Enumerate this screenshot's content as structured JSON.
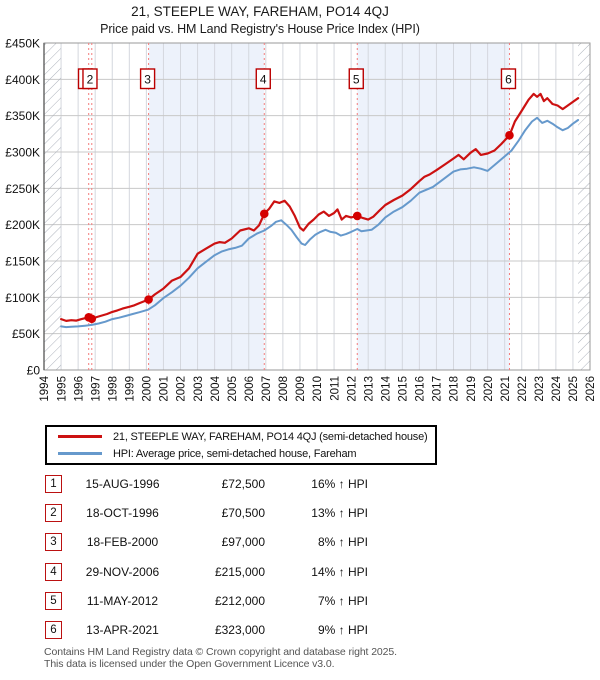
{
  "title": "21, STEEPLE WAY, FAREHAM, PO14 4QJ",
  "subtitle": "Price paid vs. HM Land Registry's House Price Index (HPI)",
  "footer": {
    "line1": "Contains HM Land Registry data © Crown copyright and database right 2025.",
    "line2": "This data is licensed under the Open Government Licence v3.0."
  },
  "colors": {
    "property_red": "#cc1111",
    "hpi_blue": "#6699cc",
    "shaded_band": "#edf2fb",
    "sale_dashed_line": "#f47c7c",
    "grid_horizontal": "#c8c8c8",
    "grid_vertical": "#d4d7de",
    "frame": "#9a9a9a",
    "hatch": "#adb2bc"
  },
  "transactions": [
    {
      "n": 1,
      "date": "15-AUG-1996",
      "year": 1996.62,
      "price_k": 72.5,
      "price": "£72,500",
      "hpi": "16% ↑ HPI",
      "box_dx": -3.2
    },
    {
      "n": 2,
      "date": "18-OCT-1996",
      "year": 1996.8,
      "price_k": 70.5,
      "price": "£70,500",
      "hpi": "13% ↑ HPI",
      "box_dx": -1.8
    },
    {
      "n": 3,
      "date": "18-FEB-2000",
      "year": 2000.13,
      "price_k": 97,
      "price": "£97,000",
      "hpi": "8% ↑ HPI",
      "box_dx": -1
    },
    {
      "n": 4,
      "date": "29-NOV-2006",
      "year": 2006.91,
      "price_k": 215,
      "price": "£215,000",
      "hpi": "14% ↑ HPI",
      "box_dx": -1
    },
    {
      "n": 5,
      "date": "11-MAY-2012",
      "year": 2012.36,
      "price_k": 212,
      "price": "£212,000",
      "hpi": "7% ↑ HPI",
      "box_dx": -1
    },
    {
      "n": 6,
      "date": "13-APR-2021",
      "year": 2021.28,
      "price_k": 323,
      "price": "£323,000",
      "hpi": "9% ↑ HPI",
      "box_dx": -1
    }
  ],
  "chart_data": {
    "type": "line",
    "unit": "GBP thousands",
    "x_range": [
      1994,
      2026
    ],
    "ylim_k": [
      0,
      450
    ],
    "grid": true,
    "legend_position": "bottom",
    "x_ticks": [
      1994,
      1995,
      1996,
      1997,
      1998,
      1999,
      2000,
      2001,
      2002,
      2003,
      2004,
      2005,
      2006,
      2007,
      2008,
      2009,
      2010,
      2011,
      2012,
      2013,
      2014,
      2015,
      2016,
      2017,
      2018,
      2019,
      2020,
      2021,
      2022,
      2023,
      2024,
      2025,
      2026
    ],
    "y_ticks": [
      [
        0,
        "£0"
      ],
      [
        50,
        "£50K"
      ],
      [
        100,
        "£100K"
      ],
      [
        150,
        "£150K"
      ],
      [
        200,
        "£200K"
      ],
      [
        250,
        "£250K"
      ],
      [
        300,
        "£300K"
      ],
      [
        350,
        "£350K"
      ],
      [
        400,
        "£400K"
      ],
      [
        450,
        "£450K"
      ]
    ],
    "shaded_periods": [
      [
        2000.13,
        2006.91
      ],
      [
        2012.36,
        2021.28
      ]
    ],
    "hatched_edges": [
      [
        1994,
        1995
      ],
      [
        2025.3,
        2026
      ]
    ],
    "series": [
      {
        "name": "21, STEEPLE WAY, FAREHAM, PO14 4QJ (semi-detached house)",
        "color": "#cc1111",
        "width": 2.2,
        "points": [
          [
            1995.0,
            70
          ],
          [
            1995.3,
            67.5
          ],
          [
            1995.6,
            68.5
          ],
          [
            1995.9,
            68
          ],
          [
            1996.2,
            70
          ],
          [
            1996.62,
            72.5
          ],
          [
            1996.8,
            70.5
          ],
          [
            1997.1,
            73
          ],
          [
            1997.4,
            75
          ],
          [
            1997.7,
            77
          ],
          [
            1998.0,
            80
          ],
          [
            1998.3,
            82
          ],
          [
            1998.6,
            84.5
          ],
          [
            1999.0,
            87
          ],
          [
            1999.3,
            89
          ],
          [
            1999.6,
            92
          ],
          [
            2000.13,
            97
          ],
          [
            2000.5,
            104
          ],
          [
            2001.0,
            112
          ],
          [
            2001.5,
            123
          ],
          [
            2002.0,
            128
          ],
          [
            2002.5,
            140
          ],
          [
            2003.0,
            160
          ],
          [
            2003.5,
            167
          ],
          [
            2004.0,
            174
          ],
          [
            2004.3,
            176
          ],
          [
            2004.6,
            175
          ],
          [
            2005.0,
            181
          ],
          [
            2005.5,
            192
          ],
          [
            2006.0,
            195
          ],
          [
            2006.3,
            192
          ],
          [
            2006.6,
            199
          ],
          [
            2006.91,
            215
          ],
          [
            2007.2,
            222
          ],
          [
            2007.5,
            232
          ],
          [
            2007.8,
            230
          ],
          [
            2008.1,
            233
          ],
          [
            2008.4,
            225
          ],
          [
            2008.7,
            212
          ],
          [
            2009.0,
            196
          ],
          [
            2009.2,
            192
          ],
          [
            2009.5,
            201
          ],
          [
            2009.8,
            207
          ],
          [
            2010.1,
            214
          ],
          [
            2010.4,
            218
          ],
          [
            2010.7,
            212
          ],
          [
            2011.0,
            216
          ],
          [
            2011.2,
            221
          ],
          [
            2011.45,
            207
          ],
          [
            2011.7,
            212
          ],
          [
            2012.0,
            210
          ],
          [
            2012.36,
            212
          ],
          [
            2012.7,
            209
          ],
          [
            2013.0,
            207
          ],
          [
            2013.3,
            211
          ],
          [
            2013.6,
            218
          ],
          [
            2014.0,
            227
          ],
          [
            2014.5,
            234
          ],
          [
            2015.0,
            240
          ],
          [
            2015.5,
            249
          ],
          [
            2016.0,
            260
          ],
          [
            2016.3,
            266
          ],
          [
            2016.6,
            269
          ],
          [
            2017.0,
            275
          ],
          [
            2017.5,
            283
          ],
          [
            2018.0,
            291
          ],
          [
            2018.3,
            296
          ],
          [
            2018.6,
            290
          ],
          [
            2019.0,
            299
          ],
          [
            2019.3,
            304
          ],
          [
            2019.6,
            296
          ],
          [
            2020.0,
            298
          ],
          [
            2020.4,
            302
          ],
          [
            2020.8,
            311
          ],
          [
            2021.28,
            323
          ],
          [
            2021.6,
            342
          ],
          [
            2022.0,
            357
          ],
          [
            2022.4,
            372
          ],
          [
            2022.7,
            380
          ],
          [
            2022.9,
            376
          ],
          [
            2023.1,
            380
          ],
          [
            2023.3,
            370
          ],
          [
            2023.5,
            374
          ],
          [
            2023.8,
            366
          ],
          [
            2024.1,
            364
          ],
          [
            2024.4,
            359
          ],
          [
            2024.7,
            364
          ],
          [
            2025.0,
            369
          ],
          [
            2025.3,
            374
          ]
        ]
      },
      {
        "name": "HPI: Average price, semi-detached house, Fareham",
        "color": "#6699cc",
        "width": 2,
        "points": [
          [
            1995.0,
            60
          ],
          [
            1995.3,
            59
          ],
          [
            1995.6,
            59.5
          ],
          [
            1996.0,
            60
          ],
          [
            1996.4,
            61
          ],
          [
            1996.8,
            62
          ],
          [
            1997.2,
            64
          ],
          [
            1997.6,
            66.5
          ],
          [
            1998.0,
            70
          ],
          [
            1998.4,
            72
          ],
          [
            1998.8,
            74.5
          ],
          [
            1999.2,
            77
          ],
          [
            1999.6,
            79.5
          ],
          [
            2000.1,
            83
          ],
          [
            2000.5,
            89
          ],
          [
            2001.0,
            99
          ],
          [
            2001.5,
            107
          ],
          [
            2002.0,
            116
          ],
          [
            2002.5,
            127
          ],
          [
            2003.0,
            140
          ],
          [
            2003.5,
            149
          ],
          [
            2004.0,
            158
          ],
          [
            2004.4,
            163
          ],
          [
            2004.8,
            166
          ],
          [
            2005.2,
            168
          ],
          [
            2005.6,
            171
          ],
          [
            2006.0,
            181
          ],
          [
            2006.5,
            188
          ],
          [
            2006.91,
            192
          ],
          [
            2007.3,
            198
          ],
          [
            2007.6,
            204
          ],
          [
            2007.9,
            206
          ],
          [
            2008.2,
            200
          ],
          [
            2008.5,
            193
          ],
          [
            2008.8,
            183
          ],
          [
            2009.1,
            174
          ],
          [
            2009.3,
            172
          ],
          [
            2009.6,
            180
          ],
          [
            2009.9,
            186
          ],
          [
            2010.2,
            190
          ],
          [
            2010.5,
            193
          ],
          [
            2010.8,
            190
          ],
          [
            2011.1,
            189
          ],
          [
            2011.4,
            185
          ],
          [
            2011.7,
            187
          ],
          [
            2012.0,
            190
          ],
          [
            2012.36,
            194
          ],
          [
            2012.6,
            191
          ],
          [
            2012.9,
            192
          ],
          [
            2013.2,
            193
          ],
          [
            2013.6,
            200
          ],
          [
            2014.0,
            210
          ],
          [
            2014.5,
            218
          ],
          [
            2015.0,
            224
          ],
          [
            2015.5,
            233
          ],
          [
            2016.0,
            244
          ],
          [
            2016.4,
            248
          ],
          [
            2016.8,
            252
          ],
          [
            2017.2,
            259
          ],
          [
            2017.6,
            266
          ],
          [
            2018.0,
            273
          ],
          [
            2018.4,
            276
          ],
          [
            2018.8,
            277
          ],
          [
            2019.2,
            279
          ],
          [
            2019.6,
            277
          ],
          [
            2020.0,
            274
          ],
          [
            2020.5,
            284
          ],
          [
            2021.0,
            294
          ],
          [
            2021.4,
            302
          ],
          [
            2021.8,
            315
          ],
          [
            2022.2,
            330
          ],
          [
            2022.6,
            342
          ],
          [
            2022.9,
            347
          ],
          [
            2023.2,
            340
          ],
          [
            2023.5,
            343
          ],
          [
            2023.8,
            339
          ],
          [
            2024.1,
            334
          ],
          [
            2024.4,
            330
          ],
          [
            2024.7,
            333
          ],
          [
            2025.0,
            339
          ],
          [
            2025.3,
            344
          ]
        ]
      }
    ]
  }
}
